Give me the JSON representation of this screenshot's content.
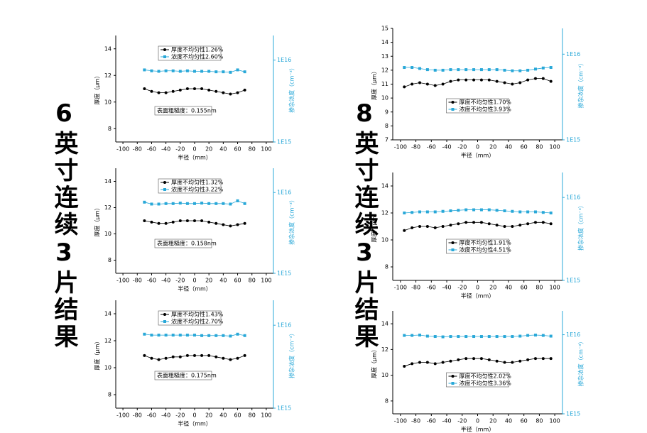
{
  "side_labels": [
    "6英寸连续3片结果",
    "8英寸连续3片结果"
  ],
  "chart_data": [
    {
      "type": "line",
      "x": [
        -70,
        -60,
        -50,
        -40,
        -30,
        -20,
        -10,
        0,
        10,
        20,
        30,
        40,
        50,
        60,
        70
      ],
      "xlim": [
        -110,
        110
      ],
      "xticks": [
        -100,
        -80,
        -60,
        -40,
        -20,
        0,
        20,
        40,
        60,
        80,
        100
      ],
      "ylim": [
        7,
        15
      ],
      "yticks": [
        8,
        10,
        12,
        14
      ],
      "y2log": true,
      "y2lim": [
        1000000000000000.0,
        2e+16
      ],
      "y2ticks": [
        {
          "value": 1000000000000000.0,
          "label": "1E15"
        },
        {
          "value": 1e+16,
          "label": "1E16"
        }
      ],
      "xlabel": "半径（mm）",
      "ylabel": "厚度（μm）",
      "y2label": "掺杂浓度（cm⁻³）",
      "legend": "upper left",
      "annotation": "表面粗糙度：0.155nm",
      "series": [
        {
          "name": "厚度不均匀性1.26%",
          "color": "#000000",
          "values": [
            11.0,
            10.8,
            10.7,
            10.7,
            10.8,
            10.9,
            11.0,
            11.0,
            11.0,
            10.9,
            10.8,
            10.7,
            10.6,
            10.7,
            10.9
          ]
        },
        {
          "name": "浓度不均匀性2.60%",
          "color": "#29a8d8",
          "axis": "y2",
          "values": [
            7600000000000000.0,
            7400000000000000.0,
            7300000000000000.0,
            7400000000000000.0,
            7400000000000000.0,
            7300000000000000.0,
            7400000000000000.0,
            7300000000000000.0,
            7300000000000000.0,
            7300000000000000.0,
            7200000000000000.0,
            7200000000000000.0,
            7100000000000000.0,
            7600000000000000.0,
            7200000000000000.0
          ]
        }
      ]
    },
    {
      "type": "line",
      "x": [
        -70,
        -60,
        -50,
        -40,
        -30,
        -20,
        -10,
        0,
        10,
        20,
        30,
        40,
        50,
        60,
        70
      ],
      "xlim": [
        -110,
        110
      ],
      "xticks": [
        -100,
        -80,
        -60,
        -40,
        -20,
        0,
        20,
        40,
        60,
        80,
        100
      ],
      "ylim": [
        7,
        15
      ],
      "yticks": [
        8,
        10,
        12,
        14
      ],
      "y2log": true,
      "y2lim": [
        1000000000000000.0,
        2e+16
      ],
      "y2ticks": [
        {
          "value": 1000000000000000.0,
          "label": "1E15"
        },
        {
          "value": 1e+16,
          "label": "1E16"
        }
      ],
      "xlabel": "半径（mm）",
      "ylabel": "厚度（μm）",
      "y2label": "掺杂浓度（cm⁻³）",
      "legend": "upper left",
      "annotation": "表面粗糙度：0.158nm",
      "series": [
        {
          "name": "厚度不均匀性1.32%",
          "color": "#000000",
          "values": [
            11.0,
            10.9,
            10.8,
            10.8,
            10.9,
            11.0,
            11.0,
            11.0,
            11.0,
            10.9,
            10.8,
            10.7,
            10.6,
            10.7,
            10.8
          ]
        },
        {
          "name": "浓度不均匀性3.22%",
          "color": "#29a8d8",
          "axis": "y2",
          "values": [
            7600000000000000.0,
            7200000000000000.0,
            7200000000000000.0,
            7300000000000000.0,
            7300000000000000.0,
            7400000000000000.0,
            7300000000000000.0,
            7300000000000000.0,
            7400000000000000.0,
            7300000000000000.0,
            7300000000000000.0,
            7300000000000000.0,
            7200000000000000.0,
            7900000000000000.0,
            7300000000000000.0
          ]
        }
      ]
    },
    {
      "type": "line",
      "x": [
        -70,
        -60,
        -50,
        -40,
        -30,
        -20,
        -10,
        0,
        10,
        20,
        30,
        40,
        50,
        60,
        70
      ],
      "xlim": [
        -110,
        110
      ],
      "xticks": [
        -100,
        -80,
        -60,
        -40,
        -20,
        0,
        20,
        40,
        60,
        80,
        100
      ],
      "ylim": [
        7,
        15
      ],
      "yticks": [
        8,
        10,
        12,
        14
      ],
      "y2log": true,
      "y2lim": [
        1000000000000000.0,
        2e+16
      ],
      "y2ticks": [
        {
          "value": 1000000000000000.0,
          "label": "1E15"
        },
        {
          "value": 1e+16,
          "label": "1E16"
        }
      ],
      "xlabel": "半径（mm）",
      "ylabel": "厚度（μm）",
      "y2label": "掺杂浓度（cm⁻³）",
      "legend": "upper left",
      "annotation": "表面粗糙度：0.175nm",
      "series": [
        {
          "name": "厚度不均匀性1.43%",
          "color": "#000000",
          "values": [
            10.9,
            10.7,
            10.6,
            10.7,
            10.8,
            10.8,
            10.9,
            10.9,
            10.9,
            10.9,
            10.8,
            10.7,
            10.6,
            10.7,
            10.9
          ]
        },
        {
          "name": "浓度不均匀性2.70%",
          "color": "#29a8d8",
          "axis": "y2",
          "values": [
            7800000000000000.0,
            7600000000000000.0,
            7600000000000000.0,
            7600000000000000.0,
            7600000000000000.0,
            7600000000000000.0,
            7600000000000000.0,
            7600000000000000.0,
            7500000000000000.0,
            7500000000000000.0,
            7500000000000000.0,
            7500000000000000.0,
            7400000000000000.0,
            7800000000000000.0,
            7500000000000000.0
          ]
        }
      ]
    },
    {
      "type": "line",
      "x": [
        -95,
        -85,
        -75,
        -65,
        -55,
        -45,
        -35,
        -25,
        -15,
        -5,
        5,
        15,
        25,
        35,
        45,
        55,
        65,
        75,
        85,
        95
      ],
      "xlim": [
        -110,
        110
      ],
      "xticks": [
        -100,
        -80,
        -60,
        -40,
        -20,
        0,
        20,
        40,
        60,
        80,
        100
      ],
      "ylim": [
        7,
        15
      ],
      "yticks": [
        7,
        8,
        9,
        10,
        11,
        12,
        13,
        14,
        15
      ],
      "y2log": true,
      "y2lim": [
        1000000000000000.0,
        2e+16
      ],
      "y2ticks": [
        {
          "value": 1000000000000000.0,
          "label": "1E15"
        },
        {
          "value": 1e+16,
          "label": "1E16"
        }
      ],
      "xlabel": "半径（mm）",
      "ylabel": "厚度（μm）",
      "y2label": "掺杂浓度（cm⁻³）",
      "legend": "lower center",
      "series": [
        {
          "name": "厚度不均匀性1.70%",
          "color": "#000000",
          "values": [
            10.8,
            11.0,
            11.1,
            11.0,
            10.9,
            11.0,
            11.2,
            11.3,
            11.3,
            11.3,
            11.3,
            11.3,
            11.2,
            11.1,
            11.0,
            11.1,
            11.3,
            11.4,
            11.4,
            11.2
          ]
        },
        {
          "name": "浓度不均匀性3.93%",
          "color": "#29a8d8",
          "axis": "y2",
          "values": [
            7000000000000000.0,
            7000000000000000.0,
            6800000000000000.0,
            6600000000000000.0,
            6500000000000000.0,
            6500000000000000.0,
            6600000000000000.0,
            6600000000000000.0,
            6600000000000000.0,
            6600000000000000.0,
            6600000000000000.0,
            6600000000000000.0,
            6600000000000000.0,
            6500000000000000.0,
            6400000000000000.0,
            6400000000000000.0,
            6500000000000000.0,
            6700000000000000.0,
            6900000000000000.0,
            7000000000000000.0
          ]
        }
      ]
    },
    {
      "type": "line",
      "x": [
        -95,
        -85,
        -75,
        -65,
        -55,
        -45,
        -35,
        -25,
        -15,
        -5,
        5,
        15,
        25,
        35,
        45,
        55,
        65,
        75,
        85,
        95
      ],
      "xlim": [
        -110,
        110
      ],
      "xticks": [
        -100,
        -80,
        -60,
        -40,
        -20,
        0,
        20,
        40,
        60,
        80,
        100
      ],
      "ylim": [
        7,
        15
      ],
      "yticks": [
        8,
        10,
        12,
        14
      ],
      "y2log": true,
      "y2lim": [
        1000000000000000.0,
        2e+16
      ],
      "y2ticks": [
        {
          "value": 1000000000000000.0,
          "label": "1E15"
        },
        {
          "value": 1e+16,
          "label": "1E16"
        }
      ],
      "xlabel": "半径（mm）",
      "ylabel": "厚度（μm）",
      "y2label": "掺杂浓度（cm⁻³）",
      "legend": "lower center",
      "series": [
        {
          "name": "厚度不均匀性1.91%",
          "color": "#000000",
          "values": [
            10.7,
            10.9,
            11.0,
            11.0,
            10.9,
            11.0,
            11.1,
            11.2,
            11.3,
            11.3,
            11.3,
            11.2,
            11.1,
            11.0,
            11.0,
            11.1,
            11.2,
            11.3,
            11.3,
            11.2
          ]
        },
        {
          "name": "浓度不均匀性4.51%",
          "color": "#29a8d8",
          "axis": "y2",
          "values": [
            6500000000000000.0,
            6600000000000000.0,
            6700000000000000.0,
            6700000000000000.0,
            6700000000000000.0,
            6800000000000000.0,
            6900000000000000.0,
            7000000000000000.0,
            7100000000000000.0,
            7100000000000000.0,
            7100000000000000.0,
            7100000000000000.0,
            7000000000000000.0,
            6900000000000000.0,
            6800000000000000.0,
            6700000000000000.0,
            6700000000000000.0,
            6700000000000000.0,
            6600000000000000.0,
            6500000000000000.0
          ]
        }
      ]
    },
    {
      "type": "line",
      "x": [
        -95,
        -85,
        -75,
        -65,
        -55,
        -45,
        -35,
        -25,
        -15,
        -5,
        5,
        15,
        25,
        35,
        45,
        55,
        65,
        75,
        85,
        95
      ],
      "xlim": [
        -110,
        110
      ],
      "xticks": [
        -100,
        -80,
        -60,
        -40,
        -20,
        0,
        20,
        40,
        60,
        80,
        100
      ],
      "ylim": [
        7,
        15
      ],
      "yticks": [
        8,
        10,
        12,
        14
      ],
      "y2log": true,
      "y2lim": [
        1000000000000000.0,
        2e+16
      ],
      "y2ticks": [
        {
          "value": 1000000000000000.0,
          "label": "1E15"
        },
        {
          "value": 1e+16,
          "label": "1E16"
        }
      ],
      "xlabel": "半径（mm）",
      "ylabel": "厚度（μm）",
      "y2label": "掺杂浓度（cm⁻³）",
      "legend": "lower center",
      "series": [
        {
          "name": "厚度不均匀性2.02%",
          "color": "#000000",
          "values": [
            10.7,
            10.9,
            11.0,
            11.0,
            10.9,
            11.0,
            11.1,
            11.2,
            11.3,
            11.3,
            11.3,
            11.2,
            11.1,
            11.0,
            11.0,
            11.1,
            11.2,
            11.3,
            11.3,
            11.3
          ]
        },
        {
          "name": "浓度不均匀性3.36%",
          "color": "#29a8d8",
          "axis": "y2",
          "values": [
            9800000000000000.0,
            9800000000000000.0,
            9900000000000000.0,
            9600000000000000.0,
            9500000000000000.0,
            9400000000000000.0,
            9500000000000000.0,
            9500000000000000.0,
            9500000000000000.0,
            9500000000000000.0,
            9500000000000000.0,
            9500000000000000.0,
            9500000000000000.0,
            9500000000000000.0,
            9500000000000000.0,
            9600000000000000.0,
            9800000000000000.0,
            9900000000000000.0,
            9800000000000000.0,
            9600000000000000.0
          ]
        }
      ]
    }
  ]
}
